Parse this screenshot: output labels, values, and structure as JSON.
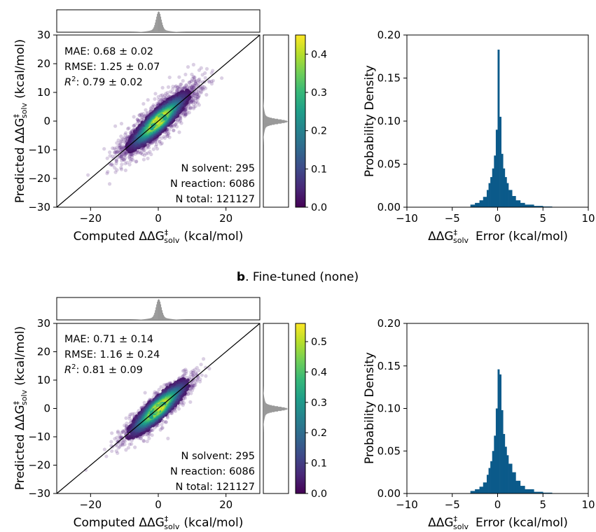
{
  "panel_b_title": {
    "letter": "b",
    "text": ". Fine-tuned (none)"
  },
  "labels": {
    "scatter_y_prefix": "Predicted ΔΔG",
    "scatter_y_suffix": "(kcal/mol)",
    "scatter_x_prefix": "Computed ΔΔG",
    "scatter_x_suffix": "(kcal/mol)",
    "sub_label": "solv",
    "sup_label": "‡",
    "hist_x_prefix": "ΔΔG",
    "hist_x_suffix": "Error (kcal/mol)",
    "hist_y": "Probability Density"
  },
  "colors": {
    "viridis": [
      "#440154",
      "#482878",
      "#3e4a89",
      "#31688e",
      "#26828e",
      "#1f9e89",
      "#35b779",
      "#6ece58",
      "#b5de2b",
      "#fde725"
    ],
    "hist_bar": "#0b5a8a",
    "marginal": "#999999",
    "scatter_point": "#5b2a86"
  },
  "chart_data": [
    {
      "type": "scatter",
      "panel": "a",
      "xlabel": "Computed ΔΔG‡solv (kcal/mol)",
      "ylabel": "Predicted ΔΔG‡solv (kcal/mol)",
      "xlim": [
        -30,
        30
      ],
      "ylim": [
        -30,
        30
      ],
      "xticks": [
        -20,
        0,
        20
      ],
      "yticks": [
        -30,
        -20,
        -10,
        0,
        10,
        20,
        30
      ],
      "stats": [
        "MAE: 0.68 ± 0.02",
        "RMSE: 1.25 ± 0.07",
        "R2: 0.79 ± 0.02"
      ],
      "r2_prefix": "R",
      "r2_exp": "2",
      "r2_value": ": 0.79 ± 0.02",
      "counts": [
        "N solvent: 295",
        "N reaction: 6086",
        "N total: 121127"
      ],
      "colorbar": {
        "range": [
          0,
          0.45
        ],
        "ticks": [
          0.0,
          0.1,
          0.2,
          0.3,
          0.4
        ],
        "tick_labels": [
          "0.0",
          "0.1",
          "0.2",
          "0.3",
          "0.4"
        ]
      },
      "spread": 1.0
    },
    {
      "type": "bar",
      "panel": "a",
      "xlabel": "ΔΔG‡solv Error (kcal/mol)",
      "ylabel": "Probability Density",
      "xlim": [
        -10,
        10
      ],
      "ylim": [
        0,
        0.2
      ],
      "xticks": [
        -10,
        -5,
        0,
        5,
        10
      ],
      "yticks": [
        0.0,
        0.05,
        0.1,
        0.15,
        0.2
      ],
      "ytick_labels": [
        "0.00",
        "0.05",
        "0.10",
        "0.15",
        "0.20"
      ],
      "bins_x": [
        -3.0,
        -2.5,
        -2.0,
        -1.6,
        -1.2,
        -1.0,
        -0.8,
        -0.6,
        -0.4,
        -0.2,
        0.0,
        0.2,
        0.4,
        0.6,
        0.8,
        1.0,
        1.2,
        1.6,
        2.0,
        2.5,
        3.0,
        4.0,
        5.0
      ],
      "values": [
        0.003,
        0.005,
        0.008,
        0.012,
        0.02,
        0.028,
        0.035,
        0.045,
        0.06,
        0.09,
        0.183,
        0.105,
        0.062,
        0.045,
        0.035,
        0.028,
        0.02,
        0.013,
        0.008,
        0.005,
        0.003,
        0.0015,
        0.0008
      ]
    },
    {
      "type": "scatter",
      "panel": "b",
      "xlabel": "Computed ΔΔG‡solv (kcal/mol)",
      "ylabel": "Predicted ΔΔG‡solv (kcal/mol)",
      "xlim": [
        -30,
        30
      ],
      "ylim": [
        -30,
        30
      ],
      "xticks": [
        -20,
        0,
        20
      ],
      "yticks": [
        -30,
        -20,
        -10,
        0,
        10,
        20,
        30
      ],
      "stats": [
        "MAE: 0.71 ± 0.14",
        "RMSE: 1.16 ± 0.24",
        "R2: 0.81 ± 0.09"
      ],
      "r2_prefix": "R",
      "r2_exp": "2",
      "r2_value": ": 0.81 ± 0.09",
      "counts": [
        "N solvent: 295",
        "N reaction: 6086",
        "N total: 121127"
      ],
      "colorbar": {
        "range": [
          0,
          0.56
        ],
        "ticks": [
          0.0,
          0.1,
          0.2,
          0.3,
          0.4,
          0.5
        ],
        "tick_labels": [
          "0.0",
          "0.1",
          "0.2",
          "0.3",
          "0.4",
          "0.5"
        ]
      },
      "spread": 0.8
    },
    {
      "type": "bar",
      "panel": "b",
      "xlabel": "ΔΔG‡solv Error (kcal/mol)",
      "ylabel": "Probability Density",
      "xlim": [
        -10,
        10
      ],
      "ylim": [
        0,
        0.2
      ],
      "xticks": [
        -10,
        -5,
        0,
        5,
        10
      ],
      "yticks": [
        0.0,
        0.05,
        0.1,
        0.15,
        0.2
      ],
      "ytick_labels": [
        "0.00",
        "0.05",
        "0.10",
        "0.15",
        "0.20"
      ],
      "bins_x": [
        -3.0,
        -2.5,
        -2.0,
        -1.6,
        -1.2,
        -1.0,
        -0.8,
        -0.6,
        -0.4,
        -0.2,
        0.0,
        0.2,
        0.4,
        0.6,
        0.8,
        1.0,
        1.2,
        1.6,
        2.0,
        2.5,
        3.0,
        4.0,
        5.0
      ],
      "values": [
        0.003,
        0.005,
        0.008,
        0.013,
        0.022,
        0.03,
        0.038,
        0.05,
        0.068,
        0.1,
        0.146,
        0.14,
        0.098,
        0.07,
        0.055,
        0.045,
        0.035,
        0.025,
        0.015,
        0.009,
        0.005,
        0.002,
        0.001
      ]
    }
  ]
}
